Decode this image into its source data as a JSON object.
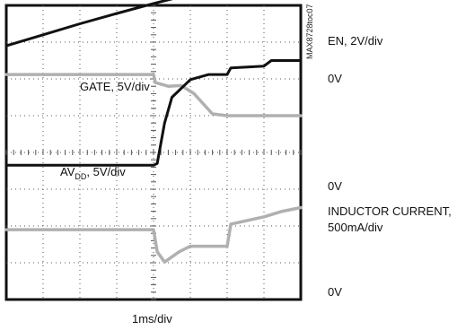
{
  "chart_data": {
    "type": "line",
    "xlabel": "1ms/div",
    "code": "MAX8728toc07",
    "grid": true,
    "x_divisions": 8,
    "y_divisions": 8,
    "channels": [
      {
        "name": "EN, 2V/div",
        "zero_label": "0V",
        "color": "#111111",
        "points": [
          [
            0,
            6.9
          ],
          [
            0.5,
            7.05
          ],
          [
            1,
            7.2
          ],
          [
            2,
            7.5
          ],
          [
            3,
            7.78
          ],
          [
            4,
            8.05
          ],
          [
            5,
            8.3
          ],
          [
            6,
            8.55
          ],
          [
            7,
            8.78
          ],
          [
            8,
            9.0
          ]
        ]
      },
      {
        "name": "GATE, 5V/div",
        "zero_label": "0V",
        "color": "#b0b0b0",
        "points": [
          [
            0,
            6.12
          ],
          [
            4.0,
            6.12
          ],
          [
            4.05,
            5.9
          ],
          [
            4.4,
            5.8
          ],
          [
            4.75,
            5.82
          ],
          [
            5.1,
            5.6
          ],
          [
            5.6,
            5.05
          ],
          [
            6,
            5.0
          ],
          [
            7,
            5.0
          ],
          [
            8,
            5.0
          ]
        ]
      },
      {
        "name": "AVDD, 5V/div",
        "name_main": "AV",
        "name_sub": "DD",
        "name_rest": ", 5V/div",
        "zero_label": "0V",
        "color": "#111111",
        "points": [
          [
            0,
            3.65
          ],
          [
            4.0,
            3.65
          ],
          [
            4.1,
            3.7
          ],
          [
            4.3,
            4.8
          ],
          [
            4.5,
            5.5
          ],
          [
            5,
            5.98
          ],
          [
            5.5,
            6.12
          ],
          [
            6.0,
            6.12
          ],
          [
            6.1,
            6.3
          ],
          [
            7.0,
            6.35
          ],
          [
            7.2,
            6.5
          ],
          [
            8,
            6.5
          ]
        ]
      },
      {
        "name": "INDUCTOR CURRENT, 500mA/div",
        "name_line1": "INDUCTOR CURRENT,",
        "name_line2": "500mA/div",
        "zero_label": "0V",
        "color": "#b0b0b0",
        "points": [
          [
            0,
            1.9
          ],
          [
            4.0,
            1.9
          ],
          [
            4.1,
            1.3
          ],
          [
            4.3,
            1.02
          ],
          [
            4.7,
            1.3
          ],
          [
            5,
            1.45
          ],
          [
            6.0,
            1.45
          ],
          [
            6.1,
            2.05
          ],
          [
            7,
            2.25
          ],
          [
            7.5,
            2.4
          ],
          [
            8,
            2.5
          ]
        ]
      }
    ]
  }
}
